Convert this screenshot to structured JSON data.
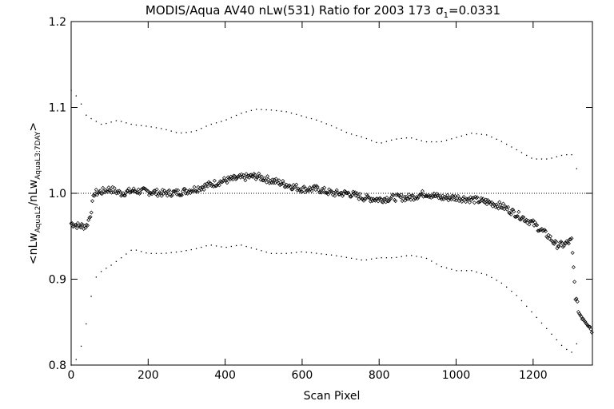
{
  "chart_data": {
    "type": "scatter",
    "title": "MODIS/Aqua AV40 nLw(531) Ratio for 2003 173",
    "title_sigma": {
      "symbol": "σ",
      "sub": "1",
      "text": "=0.0331"
    },
    "xlabel": "Scan Pixel",
    "ylabel": {
      "prefix": "<nLw",
      "sub1": "AquaL2",
      "mid": "/nLw",
      "sub2": "AquaL3:7DAY",
      "suffix": ">"
    },
    "xlim": [
      0,
      1354
    ],
    "ylim": [
      0.8,
      1.2
    ],
    "xticks": [
      0,
      200,
      400,
      600,
      800,
      1000,
      1200
    ],
    "xtick_labels": [
      "0",
      "200",
      "400",
      "600",
      "800",
      "1000",
      "1200"
    ],
    "yticks": [
      0.8,
      0.9,
      1.0,
      1.1,
      1.2
    ],
    "ytick_labels": [
      "0.8",
      "0.9",
      "1.0",
      "1.1",
      "1.2"
    ],
    "reference_line": 1.0,
    "grid": false,
    "series": [
      {
        "style": "diamond-markers",
        "x": [
          0,
          20,
          40,
          50,
          60,
          80,
          100,
          130,
          160,
          200,
          240,
          280,
          320,
          360,
          400,
          440,
          480,
          520,
          560,
          600,
          640,
          680,
          720,
          760,
          800,
          840,
          880,
          920,
          960,
          1000,
          1040,
          1080,
          1120,
          1160,
          1200,
          1240,
          1260,
          1280,
          1300,
          1310,
          1320,
          1340,
          1354
        ],
        "y": [
          0.965,
          0.962,
          0.962,
          0.975,
          1.0,
          1.002,
          1.005,
          1.0,
          1.003,
          1.002,
          1.0,
          1.001,
          1.005,
          1.01,
          1.015,
          1.018,
          1.02,
          1.015,
          1.01,
          1.005,
          1.005,
          1.0,
          1.0,
          0.995,
          0.993,
          0.995,
          0.995,
          1.0,
          0.995,
          0.995,
          0.993,
          0.99,
          0.985,
          0.975,
          0.965,
          0.95,
          0.94,
          0.94,
          0.945,
          0.88,
          0.86,
          0.85,
          0.84
        ]
      },
      {
        "style": "dots",
        "x": [
          0,
          20,
          40,
          60,
          80,
          120,
          160,
          200,
          240,
          280,
          320,
          360,
          400,
          440,
          480,
          520,
          560,
          600,
          640,
          680,
          720,
          760,
          800,
          840,
          880,
          920,
          960,
          1000,
          1040,
          1080,
          1120,
          1160,
          1200,
          1240,
          1280,
          1300,
          1320
        ],
        "y": [
          1.12,
          1.11,
          1.09,
          1.085,
          1.08,
          1.085,
          1.08,
          1.078,
          1.075,
          1.07,
          1.072,
          1.08,
          1.085,
          1.093,
          1.098,
          1.097,
          1.095,
          1.09,
          1.085,
          1.078,
          1.07,
          1.065,
          1.058,
          1.063,
          1.065,
          1.06,
          1.06,
          1.065,
          1.07,
          1.068,
          1.06,
          1.05,
          1.04,
          1.04,
          1.045,
          1.045,
          1.02
        ]
      },
      {
        "style": "dots",
        "x": [
          0,
          20,
          40,
          60,
          80,
          100,
          130,
          160,
          200,
          240,
          280,
          320,
          360,
          400,
          440,
          480,
          520,
          560,
          600,
          640,
          680,
          720,
          760,
          800,
          840,
          880,
          920,
          960,
          1000,
          1040,
          1080,
          1120,
          1160,
          1200,
          1240,
          1260,
          1280,
          1300,
          1320
        ],
        "y": [
          0.8,
          0.81,
          0.85,
          0.9,
          0.91,
          0.915,
          0.925,
          0.935,
          0.93,
          0.93,
          0.932,
          0.935,
          0.94,
          0.937,
          0.94,
          0.935,
          0.93,
          0.93,
          0.932,
          0.93,
          0.928,
          0.925,
          0.922,
          0.925,
          0.925,
          0.928,
          0.925,
          0.915,
          0.91,
          0.91,
          0.905,
          0.895,
          0.88,
          0.86,
          0.84,
          0.83,
          0.82,
          0.815,
          0.83
        ]
      }
    ]
  }
}
